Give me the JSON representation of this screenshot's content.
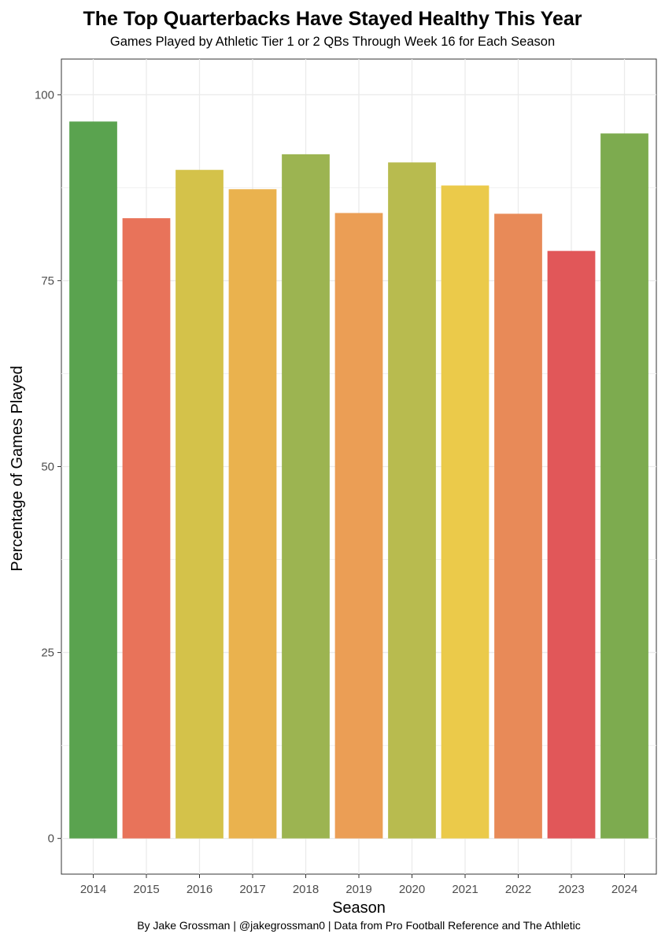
{
  "chart_data": {
    "type": "bar",
    "title": "The Top Quarterbacks Have Stayed Healthy This Year",
    "subtitle": "Games Played by Athletic Tier 1 or 2 QBs Through Week 16 for Each Season",
    "caption": "By Jake Grossman | @jakegrossman0 | Data from Pro Football Reference and The Athletic",
    "xlabel": "Season",
    "ylabel": "Percentage of Games Played",
    "categories": [
      "2014",
      "2015",
      "2016",
      "2017",
      "2018",
      "2019",
      "2020",
      "2021",
      "2022",
      "2023",
      "2024"
    ],
    "values": [
      96.4,
      83.4,
      89.9,
      87.3,
      92.0,
      84.1,
      90.9,
      87.8,
      84.0,
      79.0,
      94.8
    ],
    "colors": [
      "#5aa34f",
      "#e8735a",
      "#d4c24a",
      "#eab24e",
      "#9cb451",
      "#eb9e55",
      "#b8bb4f",
      "#ebca4a",
      "#e88a58",
      "#e15759",
      "#7dab4f"
    ],
    "yticks": [
      0,
      25,
      50,
      75,
      100
    ],
    "ylim": [
      -4.8,
      104.8
    ],
    "grid": true,
    "legend": "none"
  }
}
